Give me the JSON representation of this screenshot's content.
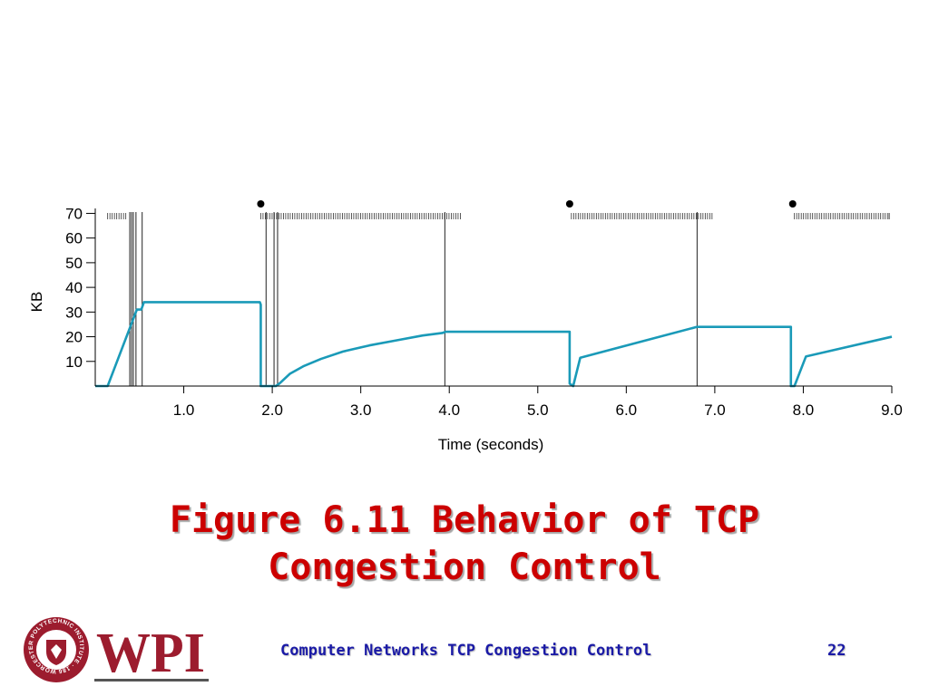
{
  "slide": {
    "title_line1": "Figure 6.11 Behavior of TCP",
    "title_line2": "Congestion Control",
    "footer_course": "Computer Networks  TCP Congestion Control",
    "page_number": "22",
    "logo_text": "WPI",
    "logo_ring_text": "WORCESTER POLYTECHNIC INSTITUTE · 1865 ·"
  },
  "chart_data": {
    "type": "line",
    "title": "",
    "xlabel": "Time (seconds)",
    "ylabel": "KB",
    "xlim": [
      0,
      9
    ],
    "ylim": [
      0,
      72
    ],
    "x_ticks": [
      1.0,
      2.0,
      3.0,
      4.0,
      5.0,
      6.0,
      7.0,
      8.0,
      9.0
    ],
    "x_tick_labels": [
      "1.0",
      "2.0",
      "3.0",
      "4.0",
      "5.0",
      "6.0",
      "7.0",
      "8.0",
      "9.0"
    ],
    "y_ticks": [
      10,
      20,
      30,
      40,
      50,
      60,
      70
    ],
    "y_tick_labels": [
      "10",
      "20",
      "30",
      "40",
      "50",
      "60",
      "70"
    ],
    "line_color": "#1a9ab8",
    "series": [
      {
        "x": [
          0,
          0.14,
          0.47,
          0.5,
          0.52,
          0.53,
          0.55,
          1.86,
          1.87,
          1.87,
          2.04,
          2.08,
          2.2,
          2.35,
          2.55,
          2.8,
          3.1,
          3.4,
          3.7,
          3.92,
          3.96,
          5.36,
          5.36,
          5.4,
          5.48,
          6.8,
          6.82,
          7.86,
          7.86,
          7.9,
          8.03,
          9.0
        ],
        "y": [
          0,
          0,
          31,
          31,
          31,
          32,
          34,
          34,
          33,
          0,
          0,
          1,
          5,
          8,
          11,
          14,
          16.5,
          18.5,
          20.5,
          21.5,
          22,
          22,
          1,
          0,
          11.5,
          24,
          24,
          24,
          0,
          0,
          12,
          20
        ]
      }
    ],
    "vertical_markers_x": [
      0.39,
      0.41,
      0.43,
      0.46,
      0.53,
      1.93,
      2.02,
      2.06,
      3.95,
      6.8
    ],
    "event_dots_x": [
      1.87,
      5.36,
      7.88
    ],
    "packet_tick_ranges": [
      [
        0.14,
        0.37
      ],
      [
        1.87,
        4.13
      ],
      [
        5.38,
        6.99
      ],
      [
        7.9,
        8.97
      ]
    ],
    "packet_tick_singles": [
      8.97
    ]
  }
}
